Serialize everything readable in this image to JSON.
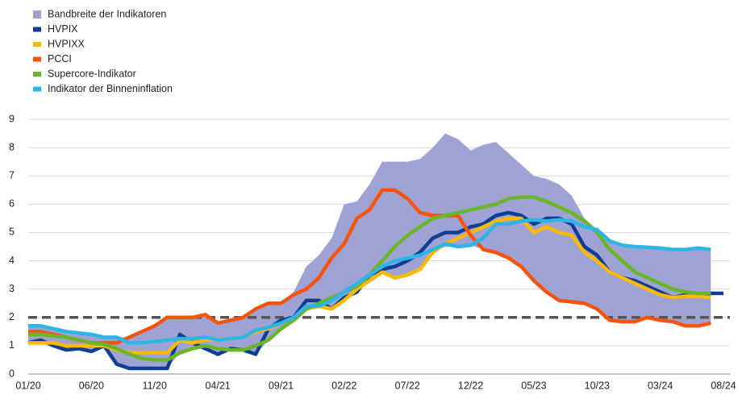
{
  "chart_data": {
    "type": "line",
    "categories": [
      "01/20",
      null,
      null,
      null,
      null,
      "06/20",
      null,
      null,
      null,
      null,
      "11/20",
      null,
      null,
      null,
      null,
      "04/21",
      null,
      null,
      null,
      null,
      "09/21",
      null,
      null,
      null,
      null,
      "02/22",
      null,
      null,
      null,
      null,
      "07/22",
      null,
      null,
      null,
      null,
      "12/22",
      null,
      null,
      null,
      null,
      "05/23",
      null,
      null,
      null,
      null,
      "10/23",
      null,
      null,
      null,
      null,
      "03/24",
      null,
      null,
      null,
      null,
      "08/24"
    ],
    "band": {
      "name": "Bandbreite der Indikatoren",
      "color": "#9ea3d4",
      "upper": [
        1.7,
        1.7,
        1.6,
        1.5,
        1.45,
        1.4,
        1.3,
        1.3,
        1.3,
        1.5,
        1.7,
        2.0,
        2.0,
        2.0,
        2.1,
        1.8,
        1.9,
        2.0,
        2.3,
        2.5,
        2.5,
        2.9,
        3.8,
        4.2,
        4.8,
        6.0,
        6.1,
        6.7,
        7.5,
        7.5,
        7.5,
        7.6,
        8.0,
        8.5,
        8.3,
        7.9,
        8.1,
        8.2,
        7.8,
        7.4,
        7.0,
        6.9,
        6.7,
        6.3,
        5.5,
        5.1,
        4.7,
        4.55,
        4.5,
        4.48,
        4.45,
        4.4,
        4.4,
        4.45,
        4.4,
        null
      ],
      "lower": [
        1.1,
        1.1,
        1.0,
        0.85,
        0.9,
        0.8,
        1.0,
        0.35,
        0.2,
        0.2,
        0.2,
        0.2,
        0.75,
        0.9,
        0.9,
        0.7,
        0.85,
        0.85,
        0.7,
        1.2,
        1.6,
        1.9,
        2.3,
        2.4,
        2.3,
        2.6,
        2.9,
        3.3,
        3.6,
        3.4,
        3.5,
        3.7,
        4.3,
        4.5,
        4.5,
        4.55,
        4.4,
        4.3,
        4.1,
        3.8,
        3.3,
        2.9,
        2.6,
        2.55,
        2.5,
        2.3,
        1.9,
        1.85,
        1.85,
        2.0,
        1.9,
        1.85,
        1.7,
        1.7,
        1.8,
        null
      ]
    },
    "series": [
      {
        "name": "HVPIX",
        "color": "#103d94",
        "values": [
          1.1,
          1.2,
          1.0,
          0.85,
          0.9,
          0.8,
          1.0,
          0.35,
          0.2,
          0.2,
          0.2,
          0.2,
          1.4,
          1.1,
          0.9,
          0.7,
          0.9,
          0.85,
          0.7,
          1.6,
          1.9,
          2.0,
          2.6,
          2.6,
          2.3,
          2.7,
          2.9,
          3.5,
          3.7,
          3.8,
          4.0,
          4.3,
          4.8,
          5.0,
          5.0,
          5.2,
          5.3,
          5.6,
          5.7,
          5.6,
          5.3,
          5.5,
          5.5,
          5.3,
          4.5,
          4.2,
          3.6,
          3.4,
          3.3,
          3.1,
          2.9,
          2.7,
          2.8,
          2.8,
          2.85,
          2.85
        ]
      },
      {
        "name": "HVPIXX",
        "color": "#fbb900",
        "values": [
          1.1,
          1.1,
          1.1,
          1.0,
          1.0,
          1.0,
          1.0,
          0.85,
          0.75,
          0.75,
          0.75,
          0.75,
          1.2,
          1.1,
          1.2,
          1.2,
          1.25,
          1.3,
          1.5,
          1.6,
          1.8,
          1.9,
          2.3,
          2.4,
          2.3,
          2.6,
          3.0,
          3.3,
          3.6,
          3.4,
          3.5,
          3.7,
          4.3,
          4.6,
          4.8,
          5.0,
          5.2,
          5.4,
          5.5,
          5.5,
          5.0,
          5.2,
          5.0,
          4.9,
          4.3,
          4.0,
          3.6,
          3.4,
          3.2,
          3.0,
          2.8,
          2.7,
          2.75,
          2.75,
          2.7,
          null
        ]
      },
      {
        "name": "PCCI",
        "color": "#f6530f",
        "values": [
          1.5,
          1.5,
          1.4,
          1.3,
          1.2,
          1.1,
          1.1,
          1.1,
          1.3,
          1.5,
          1.7,
          2.0,
          2.0,
          2.0,
          2.1,
          1.8,
          1.9,
          2.0,
          2.3,
          2.5,
          2.5,
          2.8,
          3.0,
          3.4,
          4.1,
          4.6,
          5.5,
          5.8,
          6.5,
          6.5,
          6.2,
          5.7,
          5.6,
          5.6,
          5.6,
          4.9,
          4.4,
          4.3,
          4.1,
          3.8,
          3.3,
          2.9,
          2.6,
          2.55,
          2.5,
          2.3,
          1.9,
          1.85,
          1.85,
          2.0,
          1.9,
          1.85,
          1.7,
          1.7,
          1.8,
          null
        ]
      },
      {
        "name": "Supercore-Indikator",
        "color": "#6bb52b",
        "values": [
          1.4,
          1.4,
          1.35,
          1.3,
          1.2,
          1.1,
          1.05,
          0.9,
          0.7,
          0.55,
          0.5,
          0.5,
          0.75,
          0.9,
          1.0,
          0.9,
          0.85,
          0.85,
          1.0,
          1.2,
          1.6,
          1.9,
          2.3,
          2.5,
          2.7,
          2.9,
          3.1,
          3.5,
          4.0,
          4.5,
          4.9,
          5.2,
          5.5,
          5.6,
          5.7,
          5.8,
          5.9,
          6.0,
          6.2,
          6.25,
          6.25,
          6.1,
          5.9,
          5.7,
          5.4,
          5.0,
          4.4,
          4.0,
          3.6,
          3.4,
          3.2,
          3.0,
          2.9,
          2.85,
          2.85,
          null
        ]
      },
      {
        "name": "Indikator der Binneninflation",
        "color": "#2fb4e6",
        "values": [
          1.7,
          1.7,
          1.6,
          1.5,
          1.45,
          1.4,
          1.3,
          1.3,
          1.1,
          1.1,
          1.15,
          1.2,
          1.25,
          1.25,
          1.3,
          1.2,
          1.25,
          1.3,
          1.55,
          1.65,
          1.8,
          2.0,
          2.4,
          2.4,
          2.6,
          2.9,
          3.2,
          3.5,
          3.8,
          4.0,
          4.1,
          4.2,
          4.4,
          4.6,
          4.5,
          4.55,
          4.8,
          5.3,
          5.3,
          5.4,
          5.45,
          5.4,
          5.45,
          5.4,
          5.2,
          5.1,
          4.7,
          4.55,
          4.5,
          4.48,
          4.45,
          4.4,
          4.4,
          4.45,
          4.4,
          null
        ]
      }
    ],
    "reference_line": 2,
    "ylim": [
      0,
      9
    ],
    "yticks": [
      0,
      1,
      2,
      3,
      4,
      5,
      6,
      7,
      8,
      9
    ],
    "grid": true
  }
}
